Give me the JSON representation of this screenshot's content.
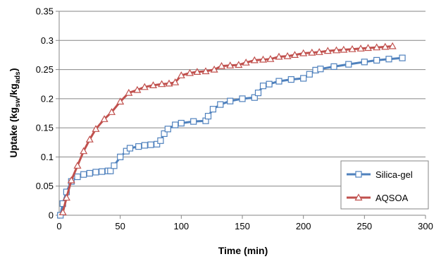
{
  "chart_data": {
    "type": "line",
    "xlabel": "Time (min)",
    "ylabel": {
      "main": "Uptake (kg",
      "sub1": "sw",
      "mid": "/kg",
      "sub2": "ads",
      "end": ")"
    },
    "xlim": [
      0,
      300
    ],
    "ylim": [
      0,
      0.35
    ],
    "xticks": [
      "0",
      "50",
      "100",
      "150",
      "200",
      "250",
      "300"
    ],
    "yticks": [
      "0",
      "0.05",
      "0.1",
      "0.15",
      "0.2",
      "0.25",
      "0.3",
      "0.35"
    ],
    "grid": "horizontal",
    "legend_position": "bottom-right",
    "series": [
      {
        "name": "Silica-gel",
        "color": "#4f81bd",
        "marker": "square",
        "x": [
          1,
          3,
          6,
          10,
          15,
          20,
          25,
          30,
          35,
          40,
          42,
          45,
          50,
          55,
          58,
          65,
          70,
          75,
          80,
          83,
          86,
          89,
          95,
          100,
          110,
          120,
          122,
          126,
          132,
          140,
          150,
          160,
          163,
          167,
          172,
          180,
          190,
          200,
          205,
          210,
          214,
          225,
          237,
          250,
          260,
          270,
          281
        ],
        "y": [
          0.0,
          0.02,
          0.04,
          0.058,
          0.066,
          0.07,
          0.072,
          0.074,
          0.075,
          0.076,
          0.076,
          0.085,
          0.1,
          0.11,
          0.115,
          0.118,
          0.12,
          0.121,
          0.122,
          0.128,
          0.14,
          0.148,
          0.155,
          0.158,
          0.161,
          0.162,
          0.17,
          0.182,
          0.19,
          0.196,
          0.2,
          0.202,
          0.21,
          0.222,
          0.225,
          0.23,
          0.233,
          0.235,
          0.242,
          0.249,
          0.251,
          0.255,
          0.259,
          0.263,
          0.266,
          0.268,
          0.27
        ]
      },
      {
        "name": "AQSOA",
        "color": "#c0504d",
        "marker": "triangle",
        "x": [
          3,
          6,
          10,
          15,
          20,
          25,
          30,
          37,
          43,
          50,
          57,
          64,
          70,
          77,
          84,
          90,
          95,
          100,
          107,
          113,
          120,
          127,
          133,
          140,
          147,
          153,
          160,
          167,
          173,
          180,
          187,
          193,
          200,
          207,
          213,
          220,
          227,
          233,
          240,
          247,
          253,
          260,
          267,
          273
        ],
        "y": [
          0.005,
          0.03,
          0.06,
          0.085,
          0.11,
          0.13,
          0.148,
          0.165,
          0.177,
          0.195,
          0.21,
          0.215,
          0.22,
          0.223,
          0.225,
          0.226,
          0.228,
          0.24,
          0.244,
          0.246,
          0.247,
          0.25,
          0.256,
          0.257,
          0.258,
          0.262,
          0.266,
          0.267,
          0.268,
          0.272,
          0.273,
          0.275,
          0.278,
          0.279,
          0.28,
          0.282,
          0.283,
          0.284,
          0.285,
          0.286,
          0.287,
          0.288,
          0.289,
          0.29
        ]
      }
    ]
  }
}
